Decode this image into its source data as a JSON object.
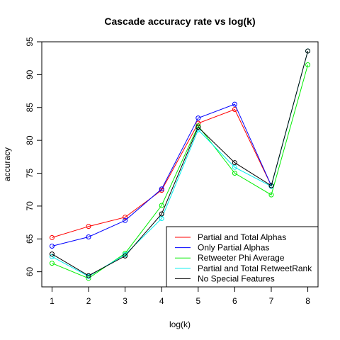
{
  "chart_data": {
    "type": "line",
    "title": "Cascade accuracy rate vs log(k)",
    "xlabel": "log(k)",
    "ylabel": "accuracy",
    "xlim": [
      0.72,
      8.28
    ],
    "ylim": [
      57.7,
      95.0
    ],
    "xticks": [
      1,
      2,
      3,
      4,
      5,
      6,
      7,
      8
    ],
    "yticks": [
      60,
      65,
      70,
      75,
      80,
      85,
      90,
      95
    ],
    "grid": false,
    "legend_position": "bottom-right",
    "series": [
      {
        "name": "Partial and Total Alphas",
        "color": "#ff0000",
        "x": [
          1,
          2,
          3,
          4,
          5,
          6,
          7
        ],
        "y": [
          65.2,
          66.9,
          68.3,
          72.4,
          82.6,
          84.7,
          73.1
        ]
      },
      {
        "name": "Only Partial Alphas",
        "color": "#0000ff",
        "x": [
          1,
          2,
          3,
          4,
          5,
          6,
          7
        ],
        "y": [
          63.9,
          65.3,
          67.8,
          72.6,
          83.4,
          85.5,
          73.1
        ]
      },
      {
        "name": "Retweeter Phi Average",
        "color": "#00ee00",
        "x": [
          1,
          2,
          3,
          4,
          5,
          6,
          7,
          8
        ],
        "y": [
          61.3,
          59.0,
          62.8,
          70.1,
          82.2,
          75.0,
          71.7,
          91.5
        ]
      },
      {
        "name": "Partial and Total RetweetRank",
        "color": "#00eeee",
        "x": [
          1,
          2,
          3,
          4,
          5,
          6,
          7,
          8
        ],
        "y": [
          62.3,
          59.3,
          62.6,
          68.1,
          81.6,
          75.9,
          73.0,
          93.6
        ]
      },
      {
        "name": "No Special Features",
        "color": "#000000",
        "x": [
          1,
          2,
          3,
          4,
          5,
          6,
          7,
          8
        ],
        "y": [
          62.7,
          59.4,
          62.4,
          68.8,
          82.0,
          76.6,
          73.1,
          93.6
        ]
      }
    ]
  }
}
